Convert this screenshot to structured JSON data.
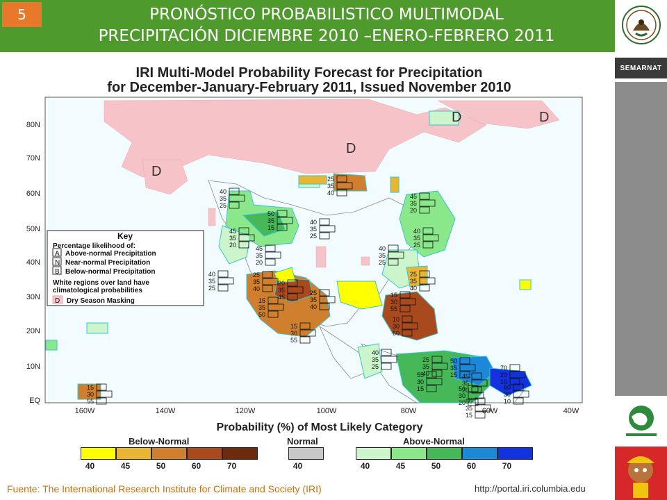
{
  "slide": {
    "number": "5",
    "title_line1": "PRONÓSTICO PROBABILISTICO MULTIMODAL",
    "title_line2": "PRECIPITACIÓN DICIEMBRE 2010 –ENERO-FEBRERO 2011"
  },
  "sidebar": {
    "semarnat_label": "SEMARNAT"
  },
  "map": {
    "title_line1": "IRI Multi-Model Probability Forecast for Precipitation",
    "title_line2": "for December-January-February 2011, Issued November 2010",
    "lat_labels": [
      "80N",
      "70N",
      "60N",
      "50N",
      "40N",
      "30N",
      "20N",
      "10N",
      "EQ"
    ],
    "lon_labels": [
      "160W",
      "140W",
      "120W",
      "100W",
      "80W",
      "60W",
      "40W"
    ],
    "dry_marks": [
      "D",
      "D",
      "D",
      "D"
    ],
    "key": {
      "title": "Key",
      "subtitle": "Percentage likelihood of:",
      "items": [
        {
          "letter": "A",
          "text": "Above-normal Precipitation"
        },
        {
          "letter": "N",
          "text": "Near-normal Precipitation"
        },
        {
          "letter": "B",
          "text": "Below-normal Precipitation"
        }
      ],
      "note_line1": "White regions over land have",
      "note_line2": "climatological probabilities",
      "dry_letter": "D",
      "dry_text": "Dry Season Masking"
    },
    "boxes": [
      {
        "v": [
          "25",
          "35",
          "40"
        ]
      },
      {
        "v": [
          "40",
          "35",
          "25"
        ]
      },
      {
        "v": [
          "45",
          "35",
          "20"
        ]
      },
      {
        "v": [
          "50",
          "35",
          "15"
        ]
      },
      {
        "v": [
          "40",
          "35",
          "25"
        ]
      },
      {
        "v": [
          "45",
          "35",
          "20"
        ]
      },
      {
        "v": [
          "40",
          "35",
          "25"
        ]
      },
      {
        "v": [
          "45",
          "35",
          "20"
        ]
      },
      {
        "v": [
          "40",
          "35",
          "25"
        ]
      },
      {
        "v": [
          "40",
          "35",
          "25"
        ]
      },
      {
        "v": [
          "25",
          "35",
          "40"
        ]
      },
      {
        "v": [
          "20",
          "35",
          "45"
        ]
      },
      {
        "v": [
          "15",
          "35",
          "50"
        ]
      },
      {
        "v": [
          "25",
          "35",
          "40"
        ]
      },
      {
        "v": [
          "25",
          "35",
          "40"
        ]
      },
      {
        "v": [
          "15",
          "30",
          "55"
        ]
      },
      {
        "v": [
          "15",
          "30",
          "55"
        ]
      },
      {
        "v": [
          "10",
          "30",
          "60"
        ]
      },
      {
        "v": [
          "40",
          "35",
          "25"
        ]
      },
      {
        "v": [
          "25",
          "35",
          "40"
        ]
      },
      {
        "v": [
          "50",
          "35",
          "15"
        ]
      },
      {
        "v": [
          "55",
          "30",
          "15"
        ]
      },
      {
        "v": [
          "45",
          "35",
          "20"
        ]
      },
      {
        "v": [
          "50",
          "30",
          "20"
        ]
      },
      {
        "v": [
          "70",
          "20",
          "10"
        ]
      },
      {
        "v": [
          "60",
          "30",
          "10"
        ]
      },
      {
        "v": [
          "50",
          "35",
          "15"
        ]
      },
      {
        "v": [
          "15",
          "30",
          "55"
        ]
      }
    ]
  },
  "legend": {
    "title": "Probability (%) of Most Likely Category",
    "below_label": "Below-Normal",
    "normal_label": "Normal",
    "above_label": "Above-Normal",
    "below": [
      {
        "value": "40",
        "color": "#ffff00"
      },
      {
        "value": "45",
        "color": "#e8b633"
      },
      {
        "value": "50",
        "color": "#cf7f2e"
      },
      {
        "value": "60",
        "color": "#a84a1d"
      },
      {
        "value": "70",
        "color": "#6e2a0c"
      }
    ],
    "normal": [
      {
        "value": "40",
        "color": "#c8c8c8"
      }
    ],
    "above": [
      {
        "value": "40",
        "color": "#ccf5cc"
      },
      {
        "value": "45",
        "color": "#8ae88a"
      },
      {
        "value": "50",
        "color": "#47b857"
      },
      {
        "value": "60",
        "color": "#1e88d8"
      },
      {
        "value": "70",
        "color": "#1231e0"
      }
    ]
  },
  "footer": {
    "source": "Fuente: The International Research Institute for Climate and Society (IRI)",
    "url": "http://portal.iri.columbia.edu"
  }
}
